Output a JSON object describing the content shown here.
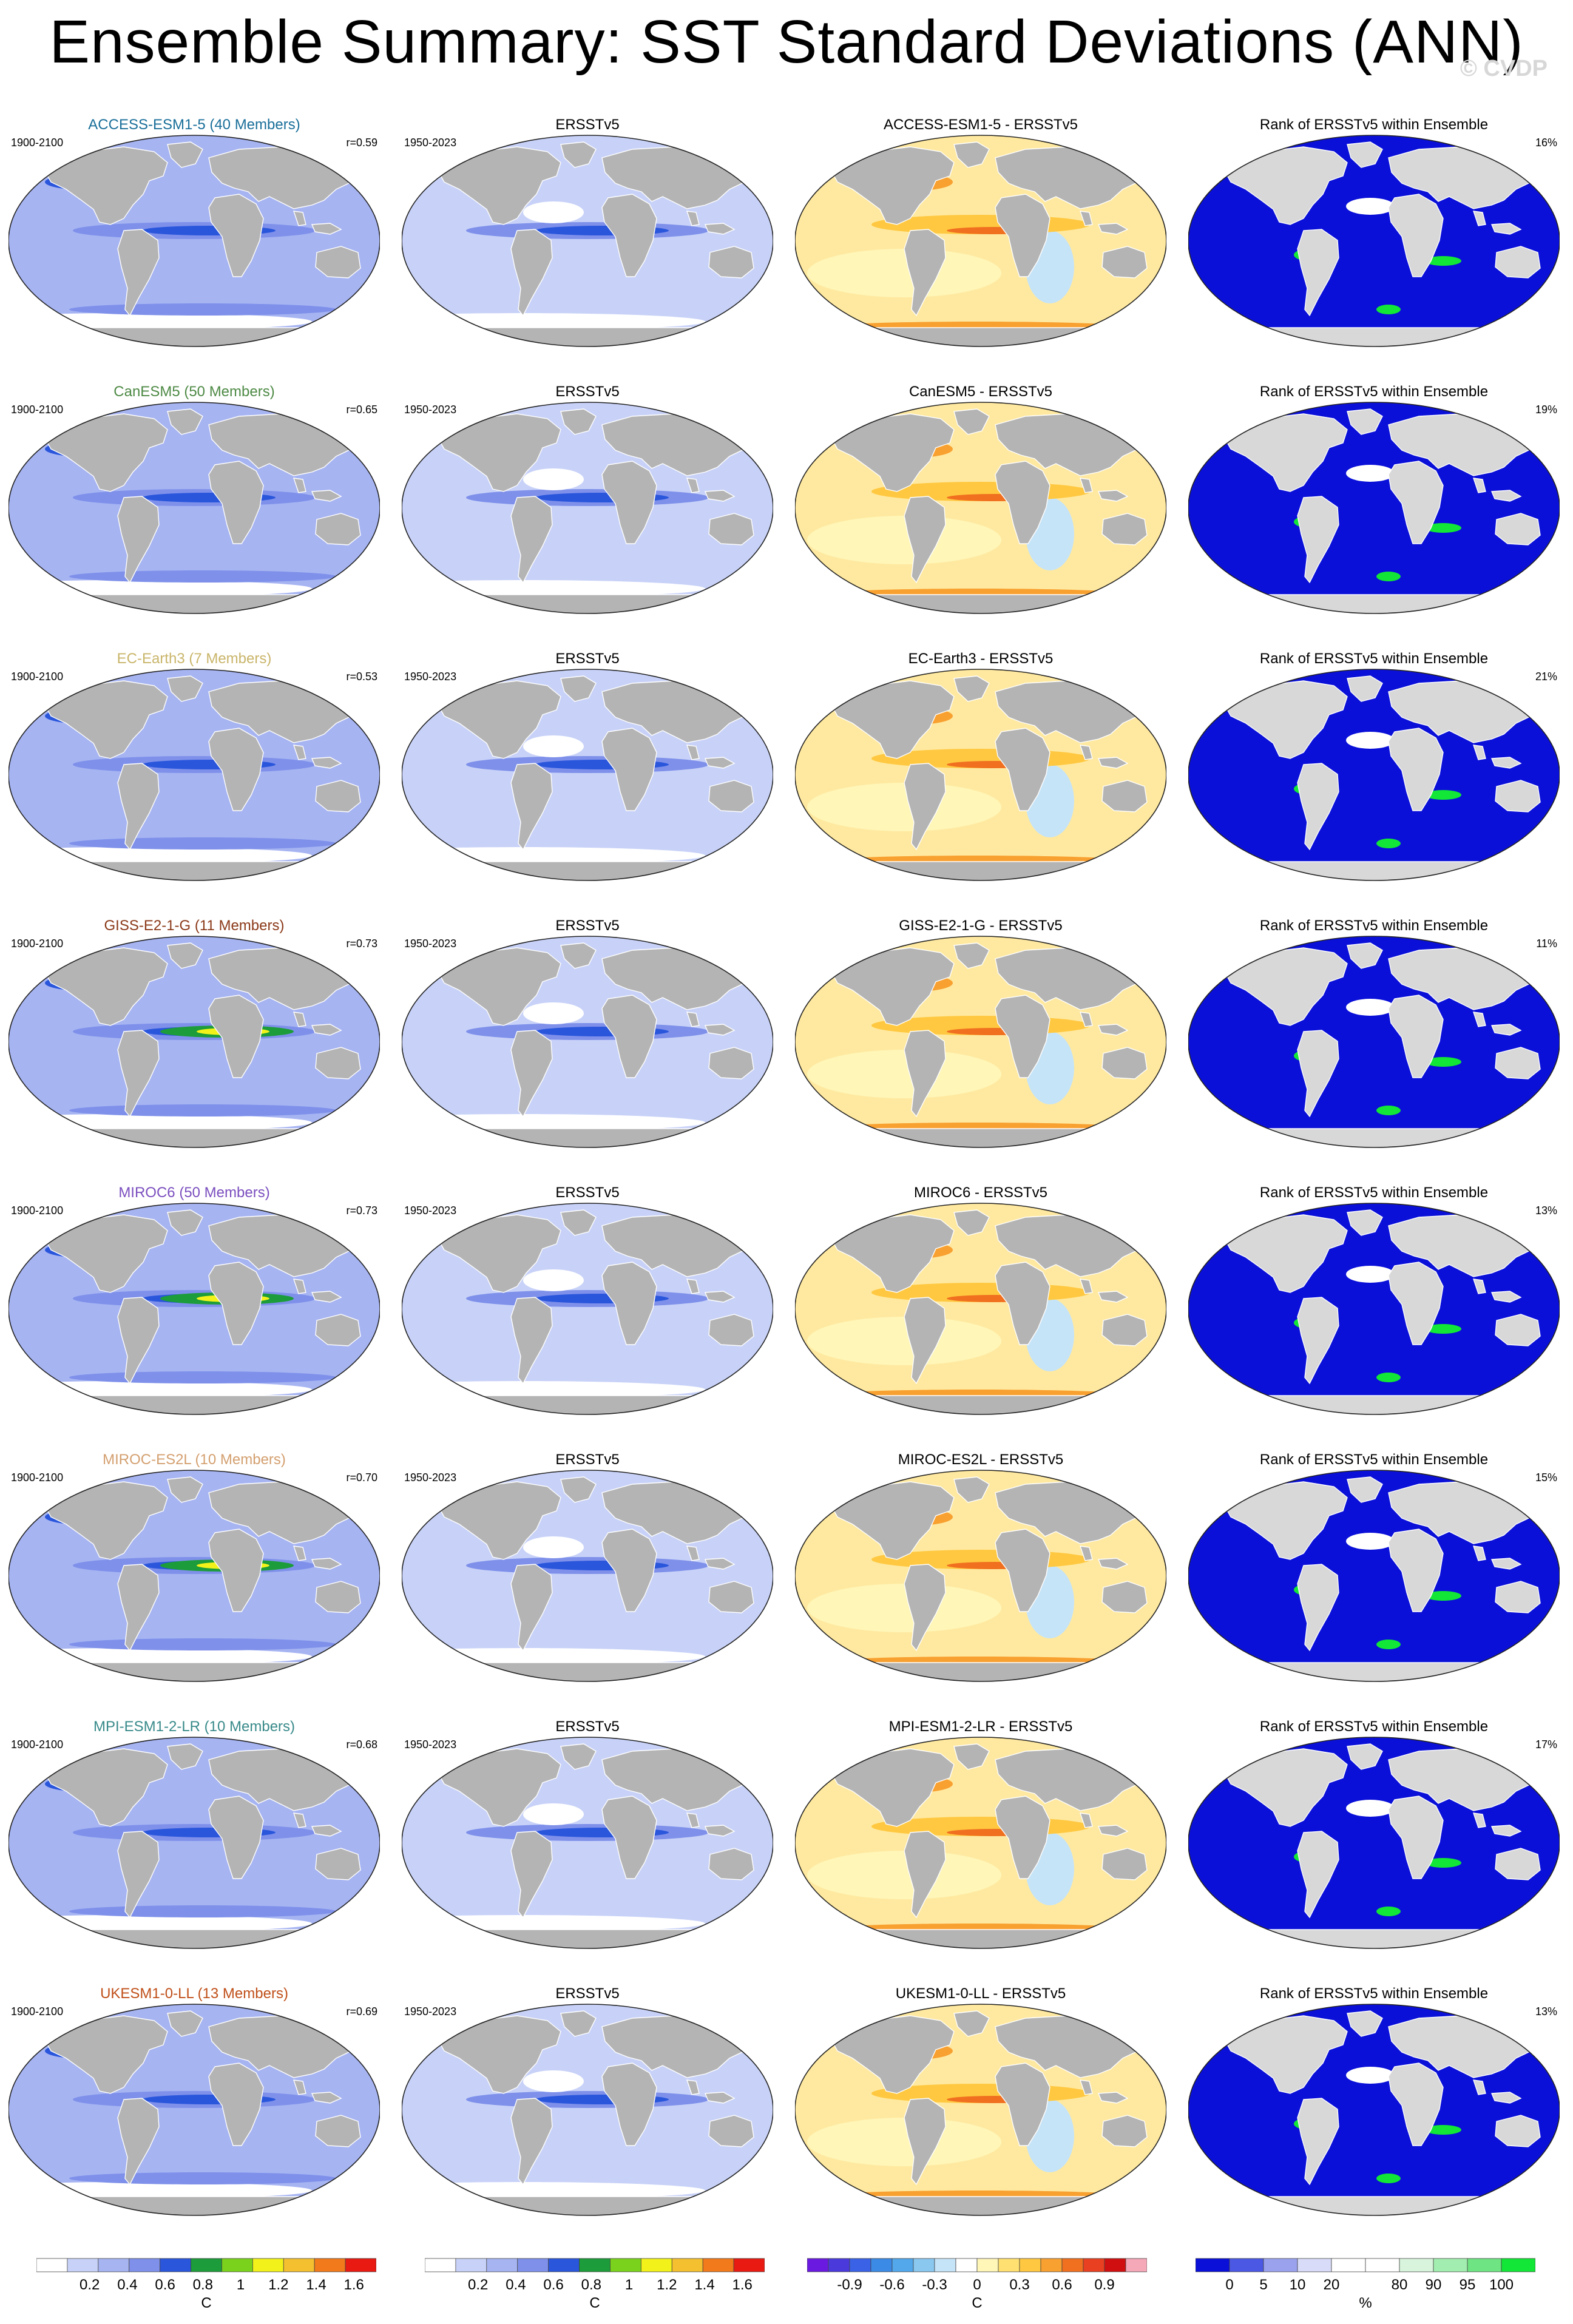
{
  "title": "Ensemble Summary: SST Standard Deviations (ANN)",
  "watermark": "© CVDP",
  "rows": [
    {
      "model": "ACCESS-ESM1-5 (40 Members)",
      "model_color": "#1a6f9a",
      "period": "1900-2100",
      "r": "r=0.59",
      "obs": "ERSSTv5",
      "obs_period": "1950-2023",
      "diff": "ACCESS-ESM1-5 - ERSSTv5",
      "rank": "Rank of ERSSTv5 within Ensemble",
      "rank_pct": "16%"
    },
    {
      "model": "CanESM5 (50 Members)",
      "model_color": "#4e8a45",
      "period": "1900-2100",
      "r": "r=0.65",
      "obs": "ERSSTv5",
      "obs_period": "1950-2023",
      "diff": "CanESM5 - ERSSTv5",
      "rank": "Rank of ERSSTv5 within Ensemble",
      "rank_pct": "19%"
    },
    {
      "model": "EC-Earth3 (7 Members)",
      "model_color": "#c9b56a",
      "period": "1900-2100",
      "r": "r=0.53",
      "obs": "ERSSTv5",
      "obs_period": "1950-2023",
      "diff": "EC-Earth3 - ERSSTv5",
      "rank": "Rank of ERSSTv5 within Ensemble",
      "rank_pct": "21%"
    },
    {
      "model": "GISS-E2-1-G (11 Members)",
      "model_color": "#8b3a1a",
      "period": "1900-2100",
      "r": "r=0.73",
      "obs": "ERSSTv5",
      "obs_period": "1950-2023",
      "diff": "GISS-E2-1-G - ERSSTv5",
      "rank": "Rank of ERSSTv5 within Ensemble",
      "rank_pct": "11%"
    },
    {
      "model": "MIROC6 (50 Members)",
      "model_color": "#7b4fbf",
      "period": "1900-2100",
      "r": "r=0.73",
      "obs": "ERSSTv5",
      "obs_period": "1950-2023",
      "diff": "MIROC6 - ERSSTv5",
      "rank": "Rank of ERSSTv5 within Ensemble",
      "rank_pct": "13%"
    },
    {
      "model": "MIROC-ES2L (10 Members)",
      "model_color": "#d4a070",
      "period": "1900-2100",
      "r": "r=0.70",
      "obs": "ERSSTv5",
      "obs_period": "1950-2023",
      "diff": "MIROC-ES2L - ERSSTv5",
      "rank": "Rank of ERSSTv5 within Ensemble",
      "rank_pct": "15%"
    },
    {
      "model": "MPI-ESM1-2-LR (10 Members)",
      "model_color": "#3a8a8a",
      "period": "1900-2100",
      "r": "r=0.68",
      "obs": "ERSSTv5",
      "obs_period": "1950-2023",
      "diff": "MPI-ESM1-2-LR - ERSSTv5",
      "rank": "Rank of ERSSTv5 within Ensemble",
      "rank_pct": "17%"
    },
    {
      "model": "UKESM1-0-LL (13 Members)",
      "model_color": "#c0501a",
      "period": "1900-2100",
      "r": "r=0.69",
      "obs": "ERSSTv5",
      "obs_period": "1950-2023",
      "diff": "UKESM1-0-LL - ERSSTv5",
      "rank": "Rank of ERSSTv5 within Ensemble",
      "rank_pct": "13%"
    }
  ],
  "colorbars": [
    {
      "id": "std-model",
      "unit": "C",
      "colors": [
        "#ffffff",
        "#c8d2f8",
        "#a6b4f2",
        "#7e90ea",
        "#2a56dc",
        "#1c9c3a",
        "#7ad21c",
        "#f2f21a",
        "#f4c030",
        "#f27a1a",
        "#e81a12"
      ],
      "ticks": [
        "0.2",
        "0.4",
        "0.6",
        "0.8",
        "1",
        "1.2",
        "1.4",
        "1.6"
      ]
    },
    {
      "id": "std-obs",
      "unit": "C",
      "colors": [
        "#ffffff",
        "#c8d2f8",
        "#a6b4f2",
        "#7e90ea",
        "#2a56dc",
        "#1c9c3a",
        "#7ad21c",
        "#f2f21a",
        "#f4c030",
        "#f27a1a",
        "#e81a12"
      ],
      "ticks": [
        "0.2",
        "0.4",
        "0.6",
        "0.8",
        "1",
        "1.2",
        "1.4",
        "1.6"
      ]
    },
    {
      "id": "diff",
      "unit": "C",
      "colors": [
        "#6a1ae0",
        "#4a3adc",
        "#3a62e6",
        "#3a8ae6",
        "#52a8ea",
        "#8ac8f0",
        "#c6e4f8",
        "#ffffff",
        "#fff6b8",
        "#ffe070",
        "#ffc840",
        "#f8a030",
        "#f07020",
        "#e84020",
        "#d01010",
        "#f4a8b8"
      ],
      "ticks": [
        "-0.9",
        "-0.6",
        "-0.3",
        "0",
        "0.3",
        "0.6",
        "0.9"
      ]
    },
    {
      "id": "rank",
      "unit": "%",
      "colors": [
        "#0a10d8",
        "#4a58e4",
        "#9aa2ee",
        "#d8dcf8",
        "#ffffff",
        "#ffffff",
        "#d8f4dc",
        "#a2eeb0",
        "#6ee482",
        "#12e636"
      ],
      "ticks": [
        "0",
        "5",
        "10",
        "20",
        "80",
        "90",
        "95",
        "100"
      ]
    }
  ]
}
